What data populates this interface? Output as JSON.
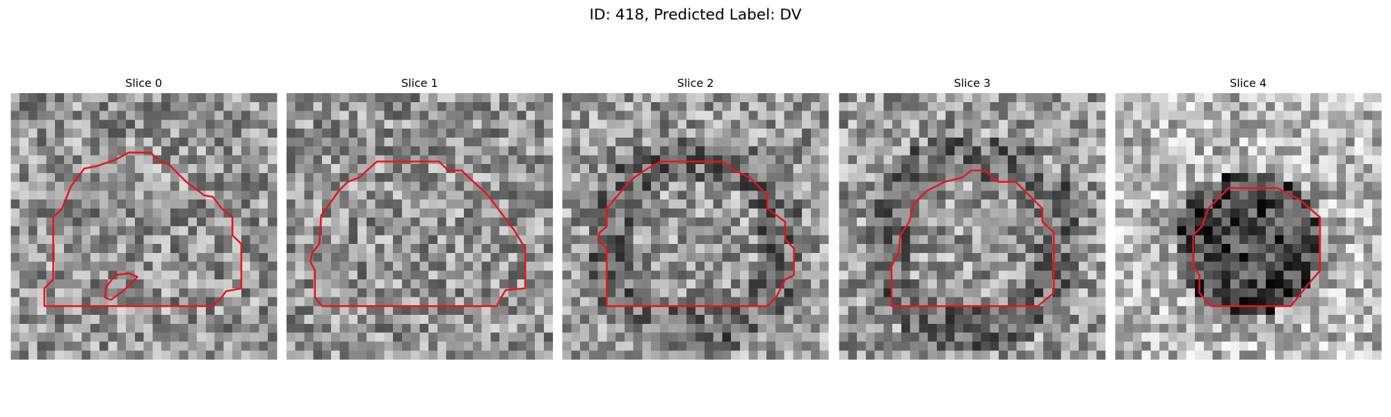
{
  "title": "ID: 418, Predicted Label: DV",
  "panels": [
    {
      "title": "Slice 0"
    },
    {
      "title": "Slice 1"
    },
    {
      "title": "Slice 2"
    },
    {
      "title": "Slice 3"
    },
    {
      "title": "Slice 4"
    }
  ]
}
